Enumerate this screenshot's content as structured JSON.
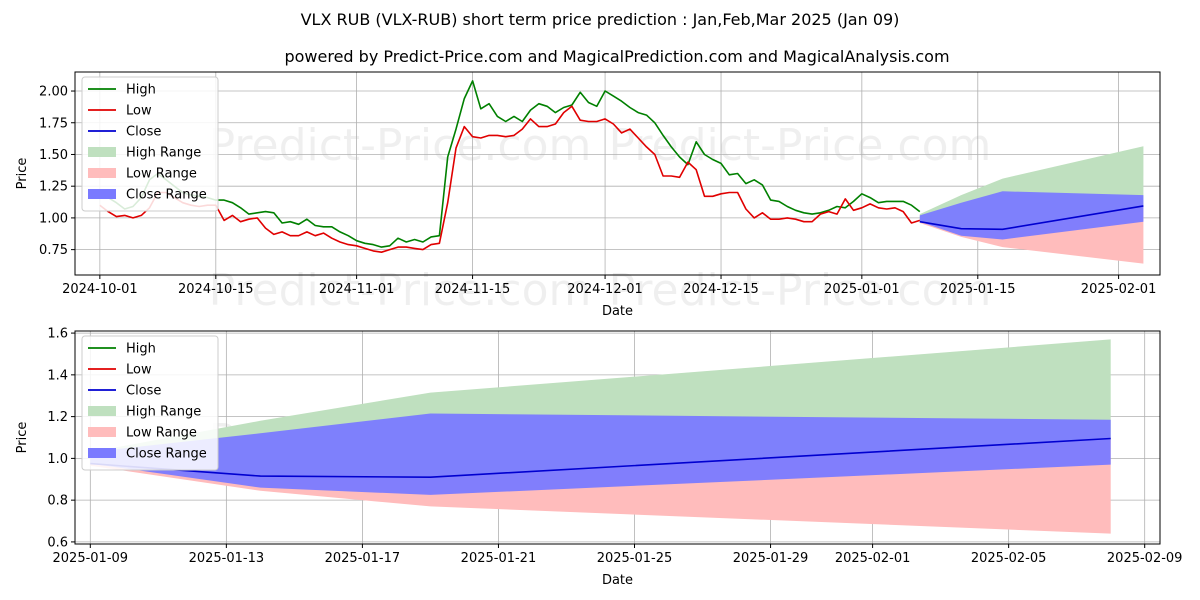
{
  "title": "VLX RUB (VLX-RUB) short term price prediction : Jan,Feb,Mar 2025 (Jan 09)",
  "subtitle": "powered by Predict-Price.com and MagicalPrediction.com and MagicalAnalysis.com",
  "watermark": "Predict-Price.com",
  "colors": {
    "high": "#008000",
    "low": "#e00000",
    "close": "#0000d0",
    "high_range": "#bfe0bf",
    "low_range": "#ffbcbc",
    "close_range": "#7a7aff"
  },
  "chart_data": [
    {
      "type": "line",
      "xlabel": "Date",
      "ylabel": "Price",
      "xlim": [
        -3,
        128
      ],
      "ylim": [
        0.55,
        2.15
      ],
      "x_origin_date": "2024-10-01",
      "xticks": [
        {
          "day": 0,
          "label": "2024-10-01"
        },
        {
          "day": 14,
          "label": "2024-10-15"
        },
        {
          "day": 31,
          "label": "2024-11-01"
        },
        {
          "day": 45,
          "label": "2024-11-15"
        },
        {
          "day": 61,
          "label": "2024-12-01"
        },
        {
          "day": 75,
          "label": "2024-12-15"
        },
        {
          "day": 92,
          "label": "2025-01-01"
        },
        {
          "day": 106,
          "label": "2025-01-15"
        },
        {
          "day": 123,
          "label": "2025-02-01"
        }
      ],
      "yticks": [
        0.75,
        1.0,
        1.25,
        1.5,
        1.75,
        2.0
      ],
      "ytick_labels": [
        "0.75",
        "1.00",
        "1.25",
        "1.50",
        "1.75",
        "2.00"
      ],
      "legend": [
        "High",
        "Low",
        "Close",
        "High Range",
        "Low Range",
        "Close Range"
      ],
      "legend_position": "upper-left",
      "series": [
        {
          "name": "High",
          "x": [
            0,
            1,
            2,
            3,
            4,
            5,
            6,
            7,
            8,
            9,
            10,
            11,
            12,
            13,
            14,
            15,
            16,
            17,
            18,
            19,
            20,
            21,
            22,
            23,
            24,
            25,
            26,
            27,
            28,
            29,
            30,
            31,
            32,
            33,
            34,
            35,
            36,
            37,
            38,
            39,
            40,
            41,
            42,
            43,
            44,
            45,
            46,
            47,
            48,
            49,
            50,
            51,
            52,
            53,
            54,
            55,
            56,
            57,
            58,
            59,
            60,
            61,
            62,
            63,
            64,
            65,
            66,
            67,
            68,
            69,
            70,
            71,
            72,
            73,
            74,
            75,
            76,
            77,
            78,
            79,
            80,
            81,
            82,
            83,
            84,
            85,
            86,
            87,
            88,
            89,
            90,
            91,
            92,
            93,
            94,
            95,
            96,
            97,
            98,
            99
          ],
          "y": [
            1.2,
            1.16,
            1.12,
            1.07,
            1.09,
            1.16,
            1.3,
            1.35,
            1.3,
            1.25,
            1.2,
            1.18,
            1.17,
            1.16,
            1.14,
            1.14,
            1.12,
            1.08,
            1.03,
            1.04,
            1.05,
            1.04,
            0.96,
            0.97,
            0.95,
            0.99,
            0.94,
            0.93,
            0.93,
            0.89,
            0.86,
            0.82,
            0.8,
            0.79,
            0.77,
            0.78,
            0.84,
            0.81,
            0.83,
            0.81,
            0.85,
            0.86,
            1.48,
            1.7,
            1.94,
            2.08,
            1.86,
            1.9,
            1.8,
            1.76,
            1.8,
            1.76,
            1.85,
            1.9,
            1.88,
            1.83,
            1.87,
            1.89,
            1.99,
            1.91,
            1.88,
            2.0,
            1.96,
            1.92,
            1.87,
            1.83,
            1.81,
            1.75,
            1.65,
            1.56,
            1.48,
            1.42,
            1.6,
            1.5,
            1.46,
            1.43,
            1.34,
            1.35,
            1.27,
            1.3,
            1.26,
            1.14,
            1.13,
            1.09,
            1.06,
            1.04,
            1.03,
            1.04,
            1.06,
            1.09,
            1.08,
            1.13,
            1.19,
            1.16,
            1.12,
            1.13,
            1.13,
            1.13,
            1.1,
            1.05
          ]
        },
        {
          "name": "Low",
          "x": [
            0,
            1,
            2,
            3,
            4,
            5,
            6,
            7,
            8,
            9,
            10,
            11,
            12,
            13,
            14,
            15,
            16,
            17,
            18,
            19,
            20,
            21,
            22,
            23,
            24,
            25,
            26,
            27,
            28,
            29,
            30,
            31,
            32,
            33,
            34,
            35,
            36,
            37,
            38,
            39,
            40,
            41,
            42,
            43,
            44,
            45,
            46,
            47,
            48,
            49,
            50,
            51,
            52,
            53,
            54,
            55,
            56,
            57,
            58,
            59,
            60,
            61,
            62,
            63,
            64,
            65,
            66,
            67,
            68,
            69,
            70,
            71,
            72,
            73,
            74,
            75,
            76,
            77,
            78,
            79,
            80,
            81,
            82,
            83,
            84,
            85,
            86,
            87,
            88,
            89,
            90,
            91,
            92,
            93,
            94,
            95,
            96,
            97,
            98,
            99
          ],
          "y": [
            1.1,
            1.05,
            1.01,
            1.02,
            1.0,
            1.02,
            1.08,
            1.2,
            1.2,
            1.16,
            1.12,
            1.1,
            1.09,
            1.1,
            1.1,
            0.98,
            1.02,
            0.97,
            0.99,
            1.0,
            0.92,
            0.87,
            0.89,
            0.86,
            0.86,
            0.89,
            0.86,
            0.88,
            0.84,
            0.81,
            0.79,
            0.78,
            0.76,
            0.74,
            0.73,
            0.75,
            0.77,
            0.77,
            0.76,
            0.75,
            0.79,
            0.8,
            1.12,
            1.55,
            1.72,
            1.64,
            1.63,
            1.65,
            1.65,
            1.64,
            1.65,
            1.7,
            1.78,
            1.72,
            1.72,
            1.74,
            1.83,
            1.88,
            1.77,
            1.76,
            1.76,
            1.78,
            1.74,
            1.67,
            1.7,
            1.63,
            1.56,
            1.5,
            1.33,
            1.33,
            1.32,
            1.44,
            1.38,
            1.17,
            1.17,
            1.19,
            1.2,
            1.2,
            1.07,
            1.0,
            1.04,
            0.99,
            0.99,
            1.0,
            0.99,
            0.97,
            0.97,
            1.03,
            1.05,
            1.03,
            1.15,
            1.06,
            1.08,
            1.11,
            1.08,
            1.07,
            1.08,
            1.05,
            0.96,
            0.98
          ]
        },
        {
          "name": "Close",
          "x": [
            99,
            104,
            109,
            126
          ],
          "y": [
            0.97,
            0.915,
            0.91,
            1.095
          ]
        }
      ],
      "ranges": [
        {
          "name": "High Range",
          "x": [
            99,
            104,
            109,
            126
          ],
          "upper": [
            1.03,
            1.18,
            1.31,
            1.565
          ],
          "lower": [
            0.97,
            0.915,
            0.91,
            1.095
          ]
        },
        {
          "name": "Low Range",
          "x": [
            99,
            104,
            109,
            126
          ],
          "upper": [
            0.97,
            0.915,
            0.91,
            1.095
          ],
          "lower": [
            0.96,
            0.85,
            0.77,
            0.64
          ]
        },
        {
          "name": "Close Range",
          "x": [
            99,
            104,
            109,
            126
          ],
          "upper": [
            1.02,
            1.12,
            1.21,
            1.18
          ],
          "lower": [
            0.97,
            0.86,
            0.83,
            0.97
          ]
        }
      ]
    },
    {
      "type": "line",
      "xlabel": "Date",
      "ylabel": "Price",
      "xlim": [
        -0.45,
        31.45
      ],
      "ylim": [
        0.59,
        1.61
      ],
      "x_origin_date": "2025-01-09",
      "xticks": [
        {
          "day": 0,
          "label": "2025-01-09"
        },
        {
          "day": 4,
          "label": "2025-01-13"
        },
        {
          "day": 8,
          "label": "2025-01-17"
        },
        {
          "day": 12,
          "label": "2025-01-21"
        },
        {
          "day": 16,
          "label": "2025-01-25"
        },
        {
          "day": 20,
          "label": "2025-01-29"
        },
        {
          "day": 23,
          "label": "2025-02-01"
        },
        {
          "day": 27,
          "label": "2025-02-05"
        },
        {
          "day": 31,
          "label": "2025-02-09"
        }
      ],
      "yticks": [
        0.6,
        0.8,
        1.0,
        1.2,
        1.4,
        1.6
      ],
      "ytick_labels": [
        "0.6",
        "0.8",
        "1.0",
        "1.2",
        "1.4",
        "1.6"
      ],
      "legend": [
        "High",
        "Low",
        "Close",
        "High Range",
        "Low Range",
        "Close Range"
      ],
      "legend_position": "upper-left",
      "series": [
        {
          "name": "Close",
          "x": [
            0,
            5,
            10,
            30
          ],
          "y": [
            0.975,
            0.915,
            0.91,
            1.095
          ]
        }
      ],
      "ranges": [
        {
          "name": "High Range",
          "x": [
            0,
            5,
            10,
            30
          ],
          "upper": [
            1.03,
            1.18,
            1.315,
            1.57
          ],
          "lower": [
            0.975,
            0.915,
            0.91,
            1.095
          ]
        },
        {
          "name": "Low Range",
          "x": [
            0,
            5,
            10,
            30
          ],
          "upper": [
            0.975,
            0.915,
            0.91,
            1.095
          ],
          "lower": [
            0.965,
            0.845,
            0.77,
            0.64
          ]
        },
        {
          "name": "Close Range",
          "x": [
            0,
            5,
            10,
            30
          ],
          "upper": [
            1.03,
            1.12,
            1.215,
            1.185
          ],
          "lower": [
            0.975,
            0.86,
            0.825,
            0.97
          ]
        }
      ]
    }
  ]
}
